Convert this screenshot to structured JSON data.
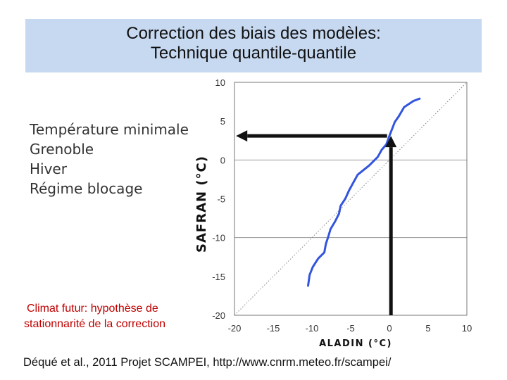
{
  "slide": {
    "title_line1": "Correction des biais des modèles:",
    "title_line2": "Technique quantile-quantile",
    "bullets": [
      "Température minimale",
      "Grenoble",
      "Hiver",
      "Régime blocage"
    ],
    "note_line1": "Climat futur: hypothèse de",
    "note_line2": "stationnarité de la correction",
    "citation": "Déqué et al., 2011 Projet SCAMPEI, http://www.cnrm.meteo.fr/scampei/",
    "colors": {
      "title_bg": "#c6d9f1",
      "note": "#c00000",
      "series": "#3355dd",
      "arrow": "#111111"
    }
  },
  "chart_data": {
    "type": "line",
    "xlabel": "ALADIN (°C)",
    "ylabel": "SAFRAN (°C)",
    "xlim": [
      -20,
      10
    ],
    "ylim": [
      -20,
      10
    ],
    "xticks": [
      -20,
      -15,
      -10,
      -5,
      0,
      5,
      10
    ],
    "yticks": [
      -20,
      -15,
      -10,
      -5,
      0,
      5,
      10
    ],
    "grid": "horizontal at y = -10, 0, 10",
    "reference_line": "1:1 diagonal (dotted)",
    "series": [
      {
        "x": [
          -10.5,
          -10.3,
          -9.9,
          -9.2,
          -8.4,
          -8.2,
          -7.9,
          -7.6,
          -7.0,
          -6.5,
          -6.3,
          -5.7,
          -5.2,
          -4.1,
          -2.6,
          -1.5,
          -1.0,
          -0.4,
          0.0,
          0.7,
          1.2,
          1.9,
          3.1,
          3.9
        ],
        "y": [
          -16.2,
          -14.8,
          -13.8,
          -12.7,
          -11.9,
          -10.8,
          -9.9,
          -8.9,
          -7.9,
          -6.9,
          -5.9,
          -5.0,
          -3.9,
          -1.9,
          -0.7,
          0.4,
          1.3,
          2.0,
          3.1,
          4.9,
          5.6,
          6.8,
          7.6,
          7.9
        ]
      }
    ],
    "annotations": [
      {
        "type": "arrow",
        "from": [
          0.2,
          -20.0
        ],
        "to": [
          0.2,
          3.1
        ],
        "label": ""
      },
      {
        "type": "arrow",
        "from": [
          -0.3,
          3.1
        ],
        "to": [
          -19.8,
          3.1
        ],
        "label": ""
      }
    ]
  }
}
